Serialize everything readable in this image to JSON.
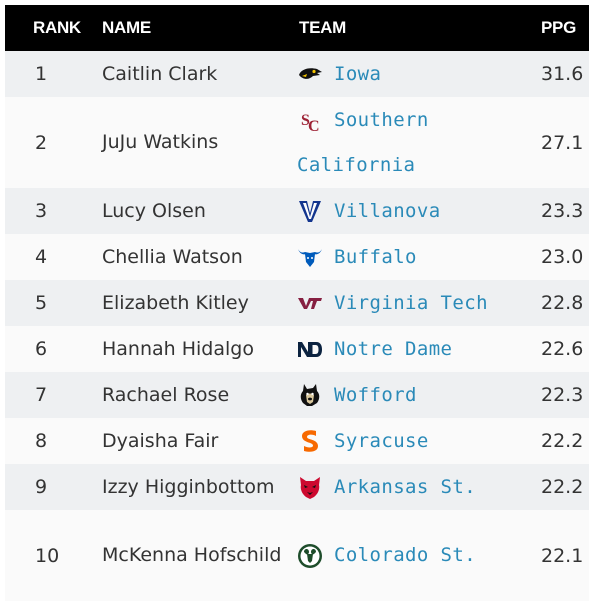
{
  "header": {
    "rank": "RANK",
    "name": "NAME",
    "team": "TEAM",
    "ppg": "PPG"
  },
  "rows": [
    {
      "rank": "1",
      "name": "Caitlin Clark",
      "team": "Iowa",
      "ppg": "31.6",
      "logo": "iowa-hawkeye-icon"
    },
    {
      "rank": "2",
      "name": "JuJu Watkins",
      "team": "Southern California",
      "ppg": "27.1",
      "logo": "usc-sc-icon"
    },
    {
      "rank": "3",
      "name": "Lucy Olsen",
      "team": "Villanova",
      "ppg": "23.3",
      "logo": "villanova-v-icon"
    },
    {
      "rank": "4",
      "name": "Chellia Watson",
      "team": "Buffalo",
      "ppg": "23.0",
      "logo": "buffalo-bull-icon"
    },
    {
      "rank": "5",
      "name": "Elizabeth Kitley",
      "team": "Virginia Tech",
      "ppg": "22.8",
      "logo": "virginia-tech-vt-icon"
    },
    {
      "rank": "6",
      "name": "Hannah Hidalgo",
      "team": "Notre Dame",
      "ppg": "22.6",
      "logo": "notre-dame-nd-icon"
    },
    {
      "rank": "7",
      "name": "Rachael Rose",
      "team": "Wofford",
      "ppg": "22.3",
      "logo": "wofford-terrier-icon"
    },
    {
      "rank": "8",
      "name": "Dyaisha Fair",
      "team": "Syracuse",
      "ppg": "22.2",
      "logo": "syracuse-s-icon"
    },
    {
      "rank": "9",
      "name": "Izzy Higginbottom",
      "team": "Arkansas St.",
      "ppg": "22.2",
      "logo": "arkansas-state-wolf-icon"
    },
    {
      "rank": "10",
      "name": "McKenna Hofschild",
      "team": "Colorado St.",
      "ppg": "22.1",
      "logo": "colorado-state-ram-icon"
    }
  ],
  "colors": {
    "header_bg": "#000000",
    "link": "#2a8ab8",
    "row_odd": "#eef0f2",
    "row_even": "#fafafa"
  }
}
